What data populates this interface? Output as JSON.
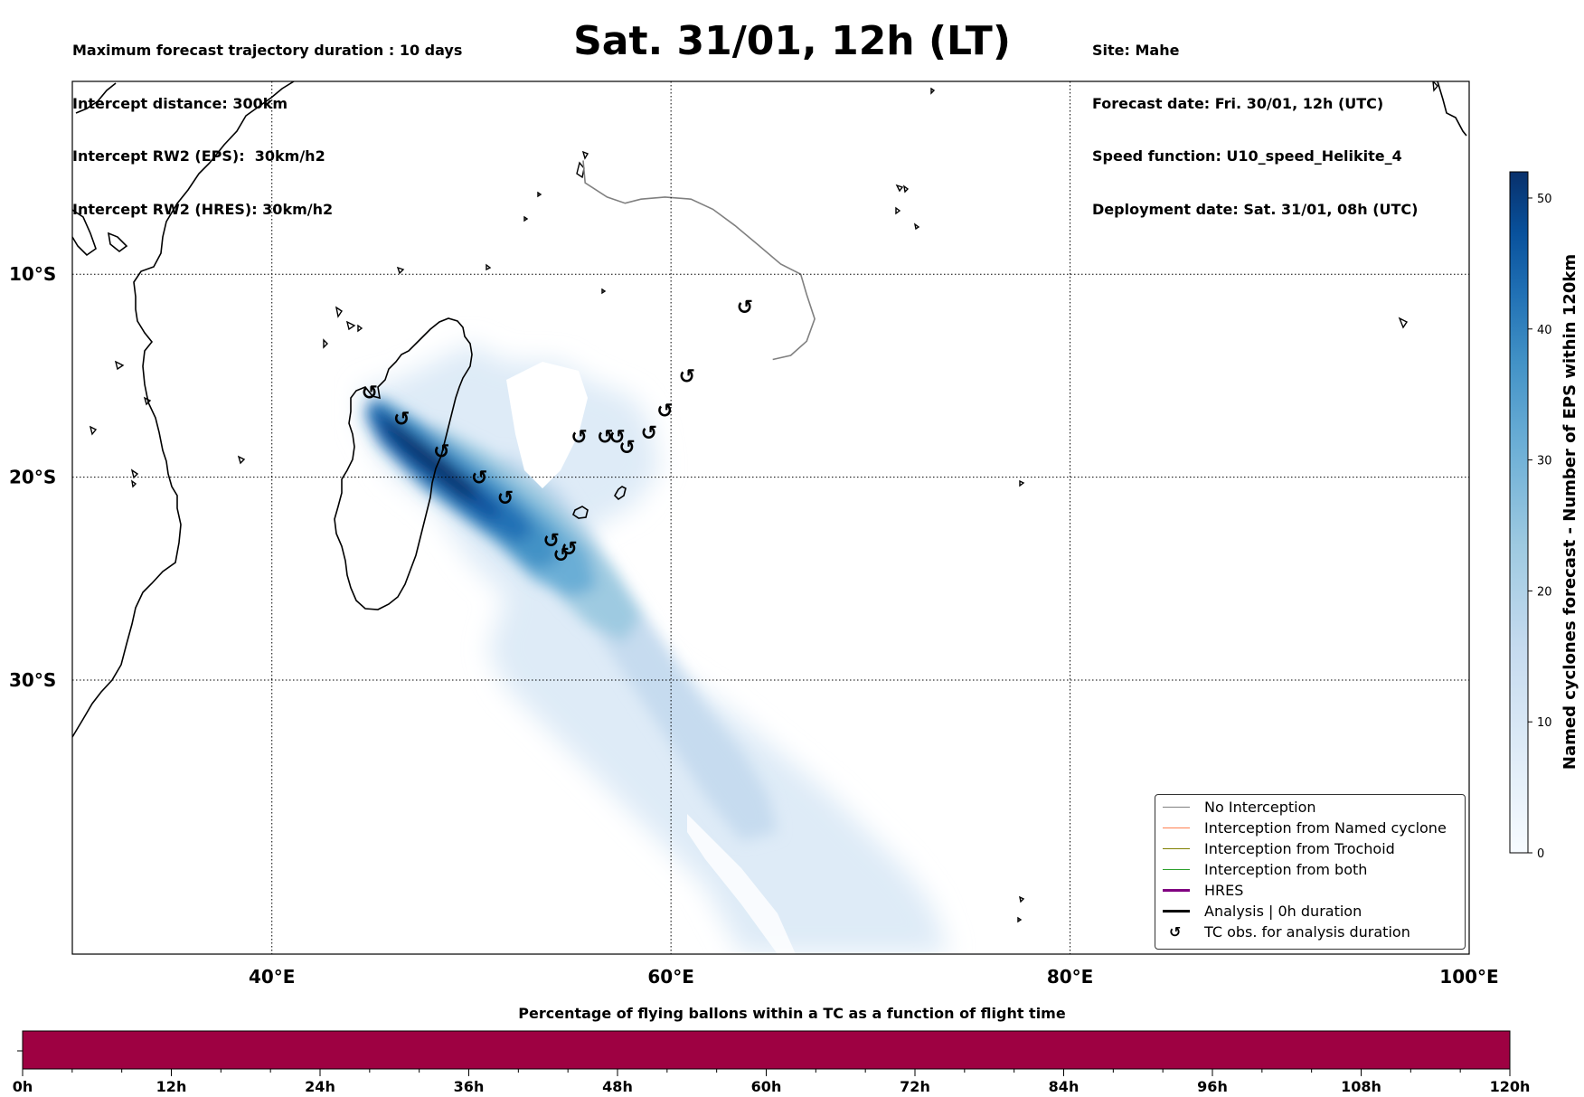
{
  "header": {
    "left": [
      "Maximum forecast trajectory duration : 10 days",
      "Intercept distance: 300km",
      "Intercept RW2 (EPS):  30km/h2",
      "Intercept RW2 (HRES): 30km/h2"
    ],
    "title": "Sat. 31/01, 12h (LT)",
    "right": [
      "Site: Mahe",
      "Forecast date: Fri. 30/01, 12h (UTC)",
      "Speed function: U10_speed_Helikite_4",
      "Deployment date: Sat. 31/01, 08h (UTC)"
    ]
  },
  "map": {
    "lon_range": [
      30,
      100
    ],
    "lat_range": [
      -43.5,
      -0.5
    ],
    "lon_ticks": [
      {
        "value": 40,
        "label": "40°E"
      },
      {
        "value": 60,
        "label": "60°E"
      },
      {
        "value": 80,
        "label": "80°E"
      },
      {
        "value": 100,
        "label": "100°E"
      }
    ],
    "lat_ticks": [
      {
        "value": -10,
        "label": "10°S"
      },
      {
        "value": -20,
        "label": "20°S"
      },
      {
        "value": -30,
        "label": "30°S"
      }
    ],
    "grid": "dotted",
    "tc_symbol": "↺",
    "tc_obs": [
      {
        "lon": 63.7,
        "lat": -11.6
      },
      {
        "lon": 60.8,
        "lat": -15.0
      },
      {
        "lon": 59.7,
        "lat": -16.7
      },
      {
        "lon": 58.9,
        "lat": -17.8
      },
      {
        "lon": 57.8,
        "lat": -18.5
      },
      {
        "lon": 57.3,
        "lat": -18.0
      },
      {
        "lon": 56.7,
        "lat": -18.0
      },
      {
        "lon": 55.4,
        "lat": -18.0
      },
      {
        "lon": 44.9,
        "lat": -15.8
      },
      {
        "lon": 46.5,
        "lat": -17.1
      },
      {
        "lon": 48.5,
        "lat": -18.7
      },
      {
        "lon": 50.4,
        "lat": -20.0
      },
      {
        "lon": 51.7,
        "lat": -21.0
      },
      {
        "lon": 54.0,
        "lat": -23.1
      },
      {
        "lon": 54.9,
        "lat": -23.5
      },
      {
        "lon": 54.5,
        "lat": -23.8
      }
    ],
    "no_interception_track": [
      [
        55.6,
        -4.4
      ],
      [
        55.7,
        -5.5
      ],
      [
        56.8,
        -6.2
      ],
      [
        57.7,
        -6.5
      ],
      [
        58.5,
        -6.3
      ],
      [
        59.7,
        -6.2
      ],
      [
        61.0,
        -6.3
      ],
      [
        62.1,
        -6.8
      ],
      [
        63.2,
        -7.6
      ],
      [
        64.3,
        -8.5
      ],
      [
        65.5,
        -9.5
      ],
      [
        66.5,
        -10.0
      ],
      [
        66.8,
        -11.0
      ],
      [
        67.2,
        -12.2
      ],
      [
        66.8,
        -13.3
      ],
      [
        66.0,
        -14.0
      ],
      [
        65.1,
        -14.2
      ]
    ],
    "density_colors": [
      "#f7fbff",
      "#deebf7",
      "#c6dbef",
      "#9ecae1",
      "#6baed6",
      "#4292c6",
      "#2171b5",
      "#08519c",
      "#08306b"
    ]
  },
  "colorbar_right": {
    "label": "Named cyclones forecast - Number of EPS within 120km",
    "min": 0,
    "max": 52,
    "ticks": [
      0,
      10,
      20,
      30,
      40,
      50
    ]
  },
  "legend": [
    {
      "label": "No Interception",
      "color": "#808080",
      "width": 1
    },
    {
      "label": "Interception from Named cyclone",
      "color": "#ff7f50",
      "width": 1
    },
    {
      "label": "Interception from Trochoid",
      "color": "#808000",
      "width": 1
    },
    {
      "label": "Interception from both",
      "color": "#2ca02c",
      "width": 1
    },
    {
      "label": "HRES",
      "color": "#800080",
      "width": 3
    },
    {
      "label": "Analysis | 0h duration",
      "color": "#000000",
      "width": 3
    },
    {
      "label": "TC obs. for analysis duration",
      "symbol": "↺"
    }
  ],
  "bottom_bar": {
    "title": "Percentage of flying ballons within a TC as a function of flight time",
    "color": "#9e0142",
    "ticks": [
      "0h",
      "12h",
      "24h",
      "36h",
      "48h",
      "60h",
      "72h",
      "84h",
      "96h",
      "108h",
      "120h"
    ]
  }
}
